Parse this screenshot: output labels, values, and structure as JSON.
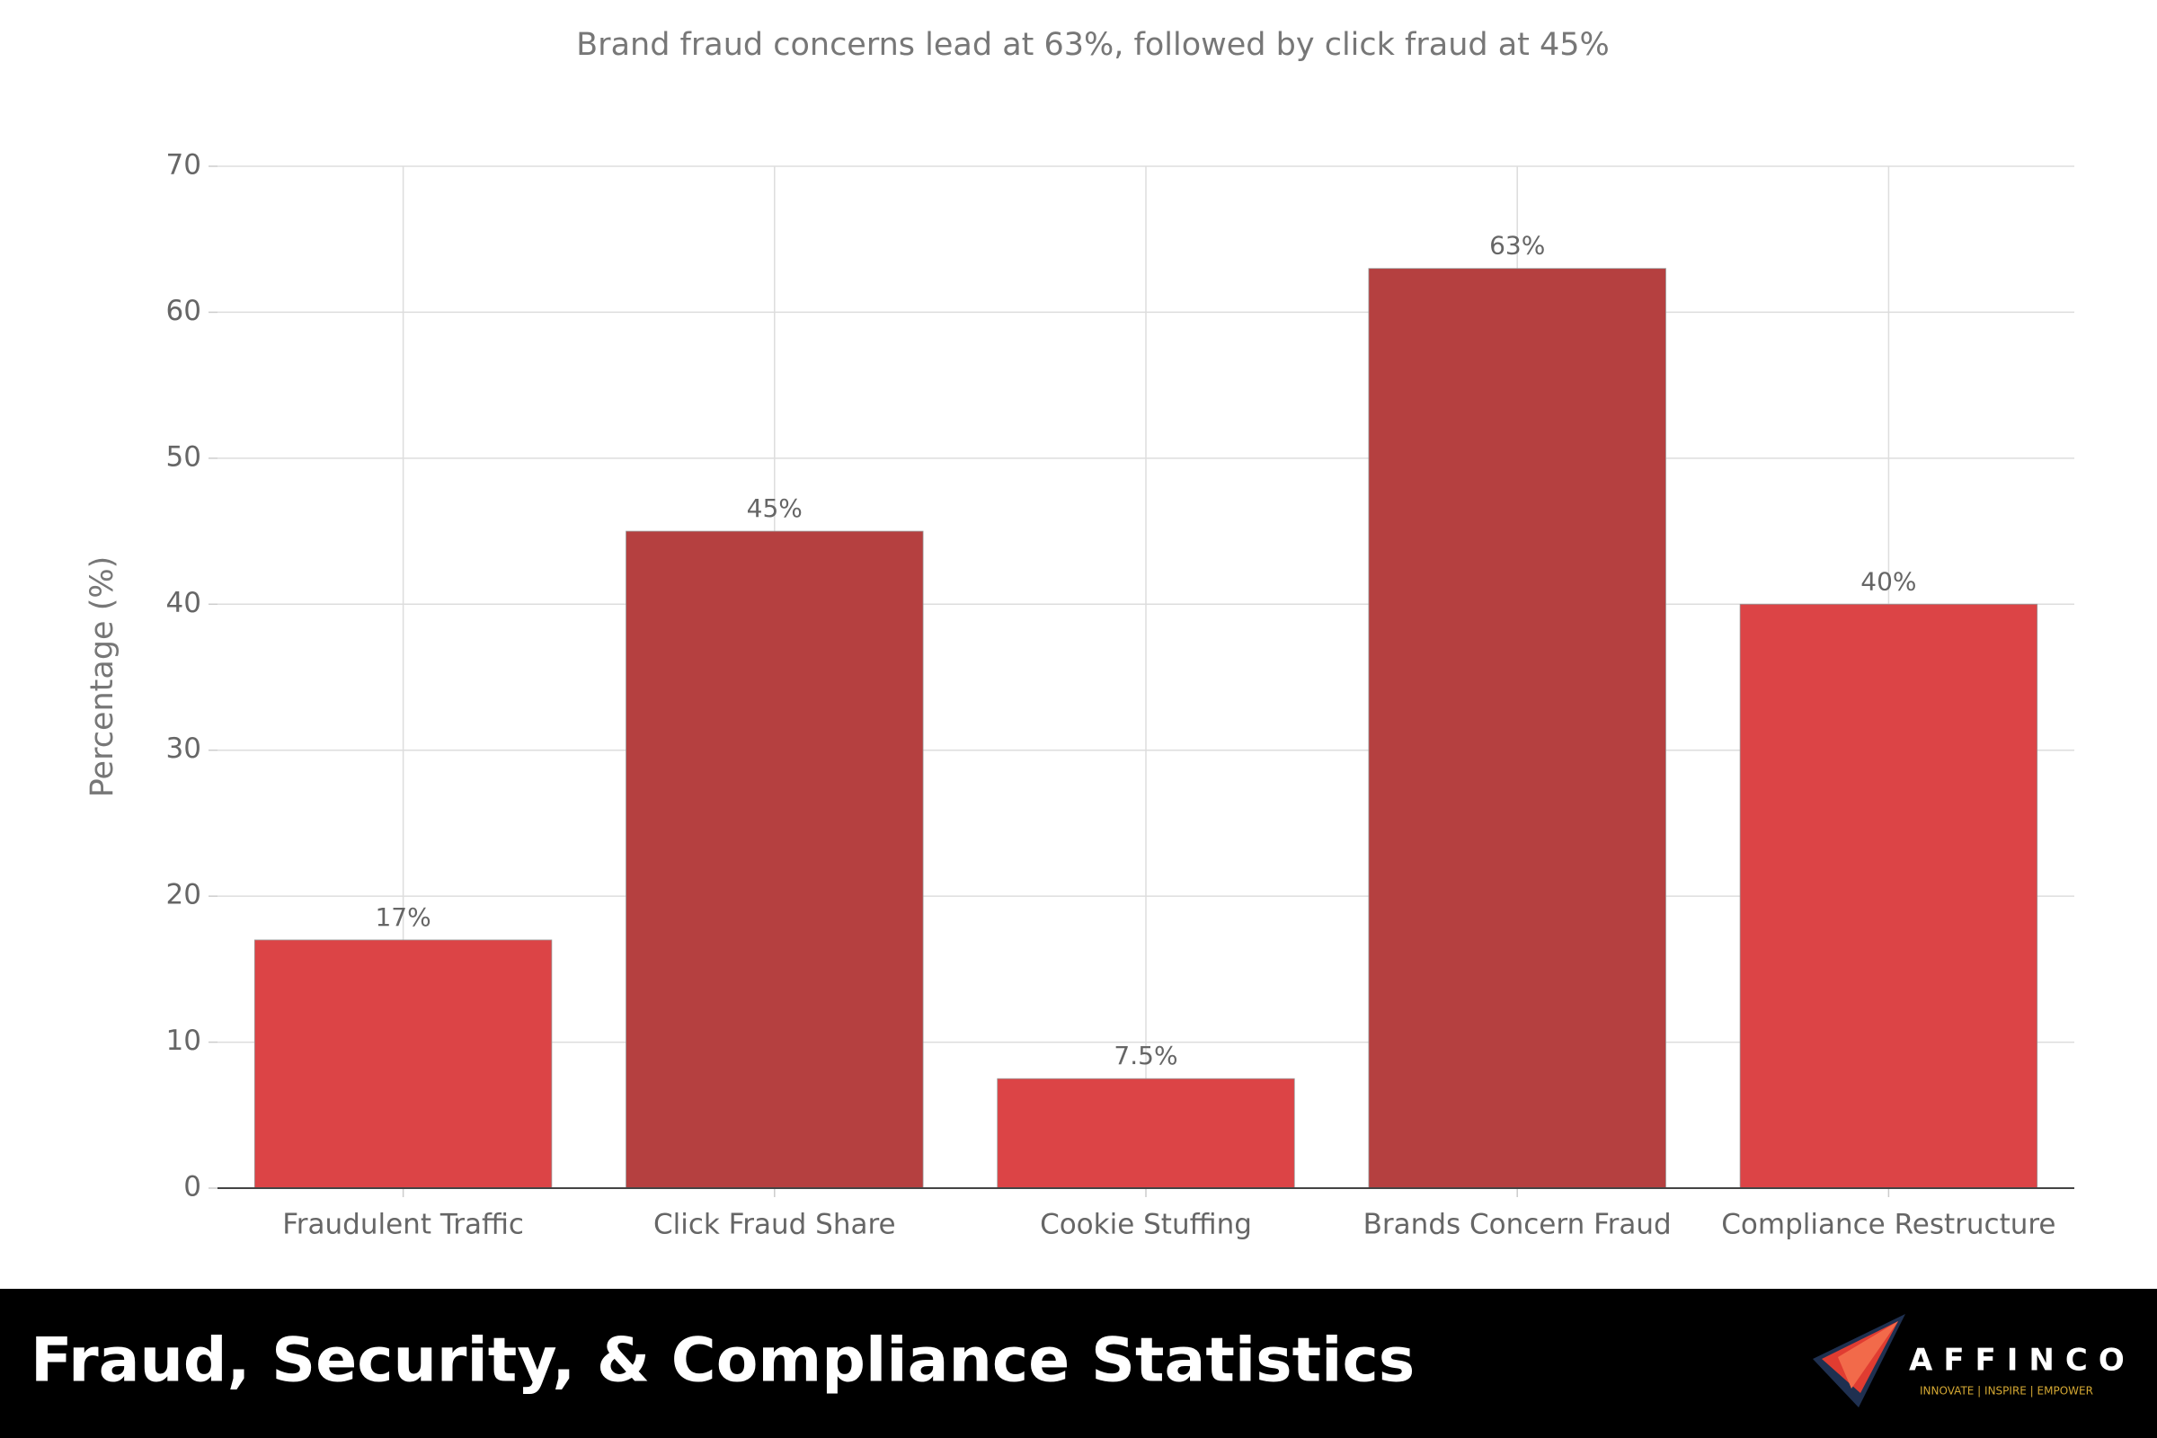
{
  "chart_data": {
    "type": "bar",
    "subtitle": "Brand fraud concerns lead at 63%, followed by click fraud at 45%",
    "y_label": "Percentage (%)",
    "categories": [
      "Fraudulent Traffic",
      "Click Fraud Share",
      "Cookie Stuffing",
      "Brands Concern Fraud",
      "Compliance Restructure"
    ],
    "values": [
      17,
      45,
      7.5,
      63,
      40
    ],
    "value_labels": [
      "17%",
      "45%",
      "7.5%",
      "63%",
      "40%"
    ],
    "colors": [
      "#dc4446",
      "#b54040",
      "#dc4446",
      "#b54040",
      "#dc4446"
    ],
    "ylim": [
      0,
      70
    ],
    "yticks": [
      0,
      10,
      20,
      30,
      40,
      50,
      60,
      70
    ],
    "grid": true
  },
  "footer": {
    "title": "Fraud, Security, & Compliance Statistics",
    "brand": "AFFINCO",
    "tagline": "INNOVATE | INSPIRE | EMPOWER"
  }
}
